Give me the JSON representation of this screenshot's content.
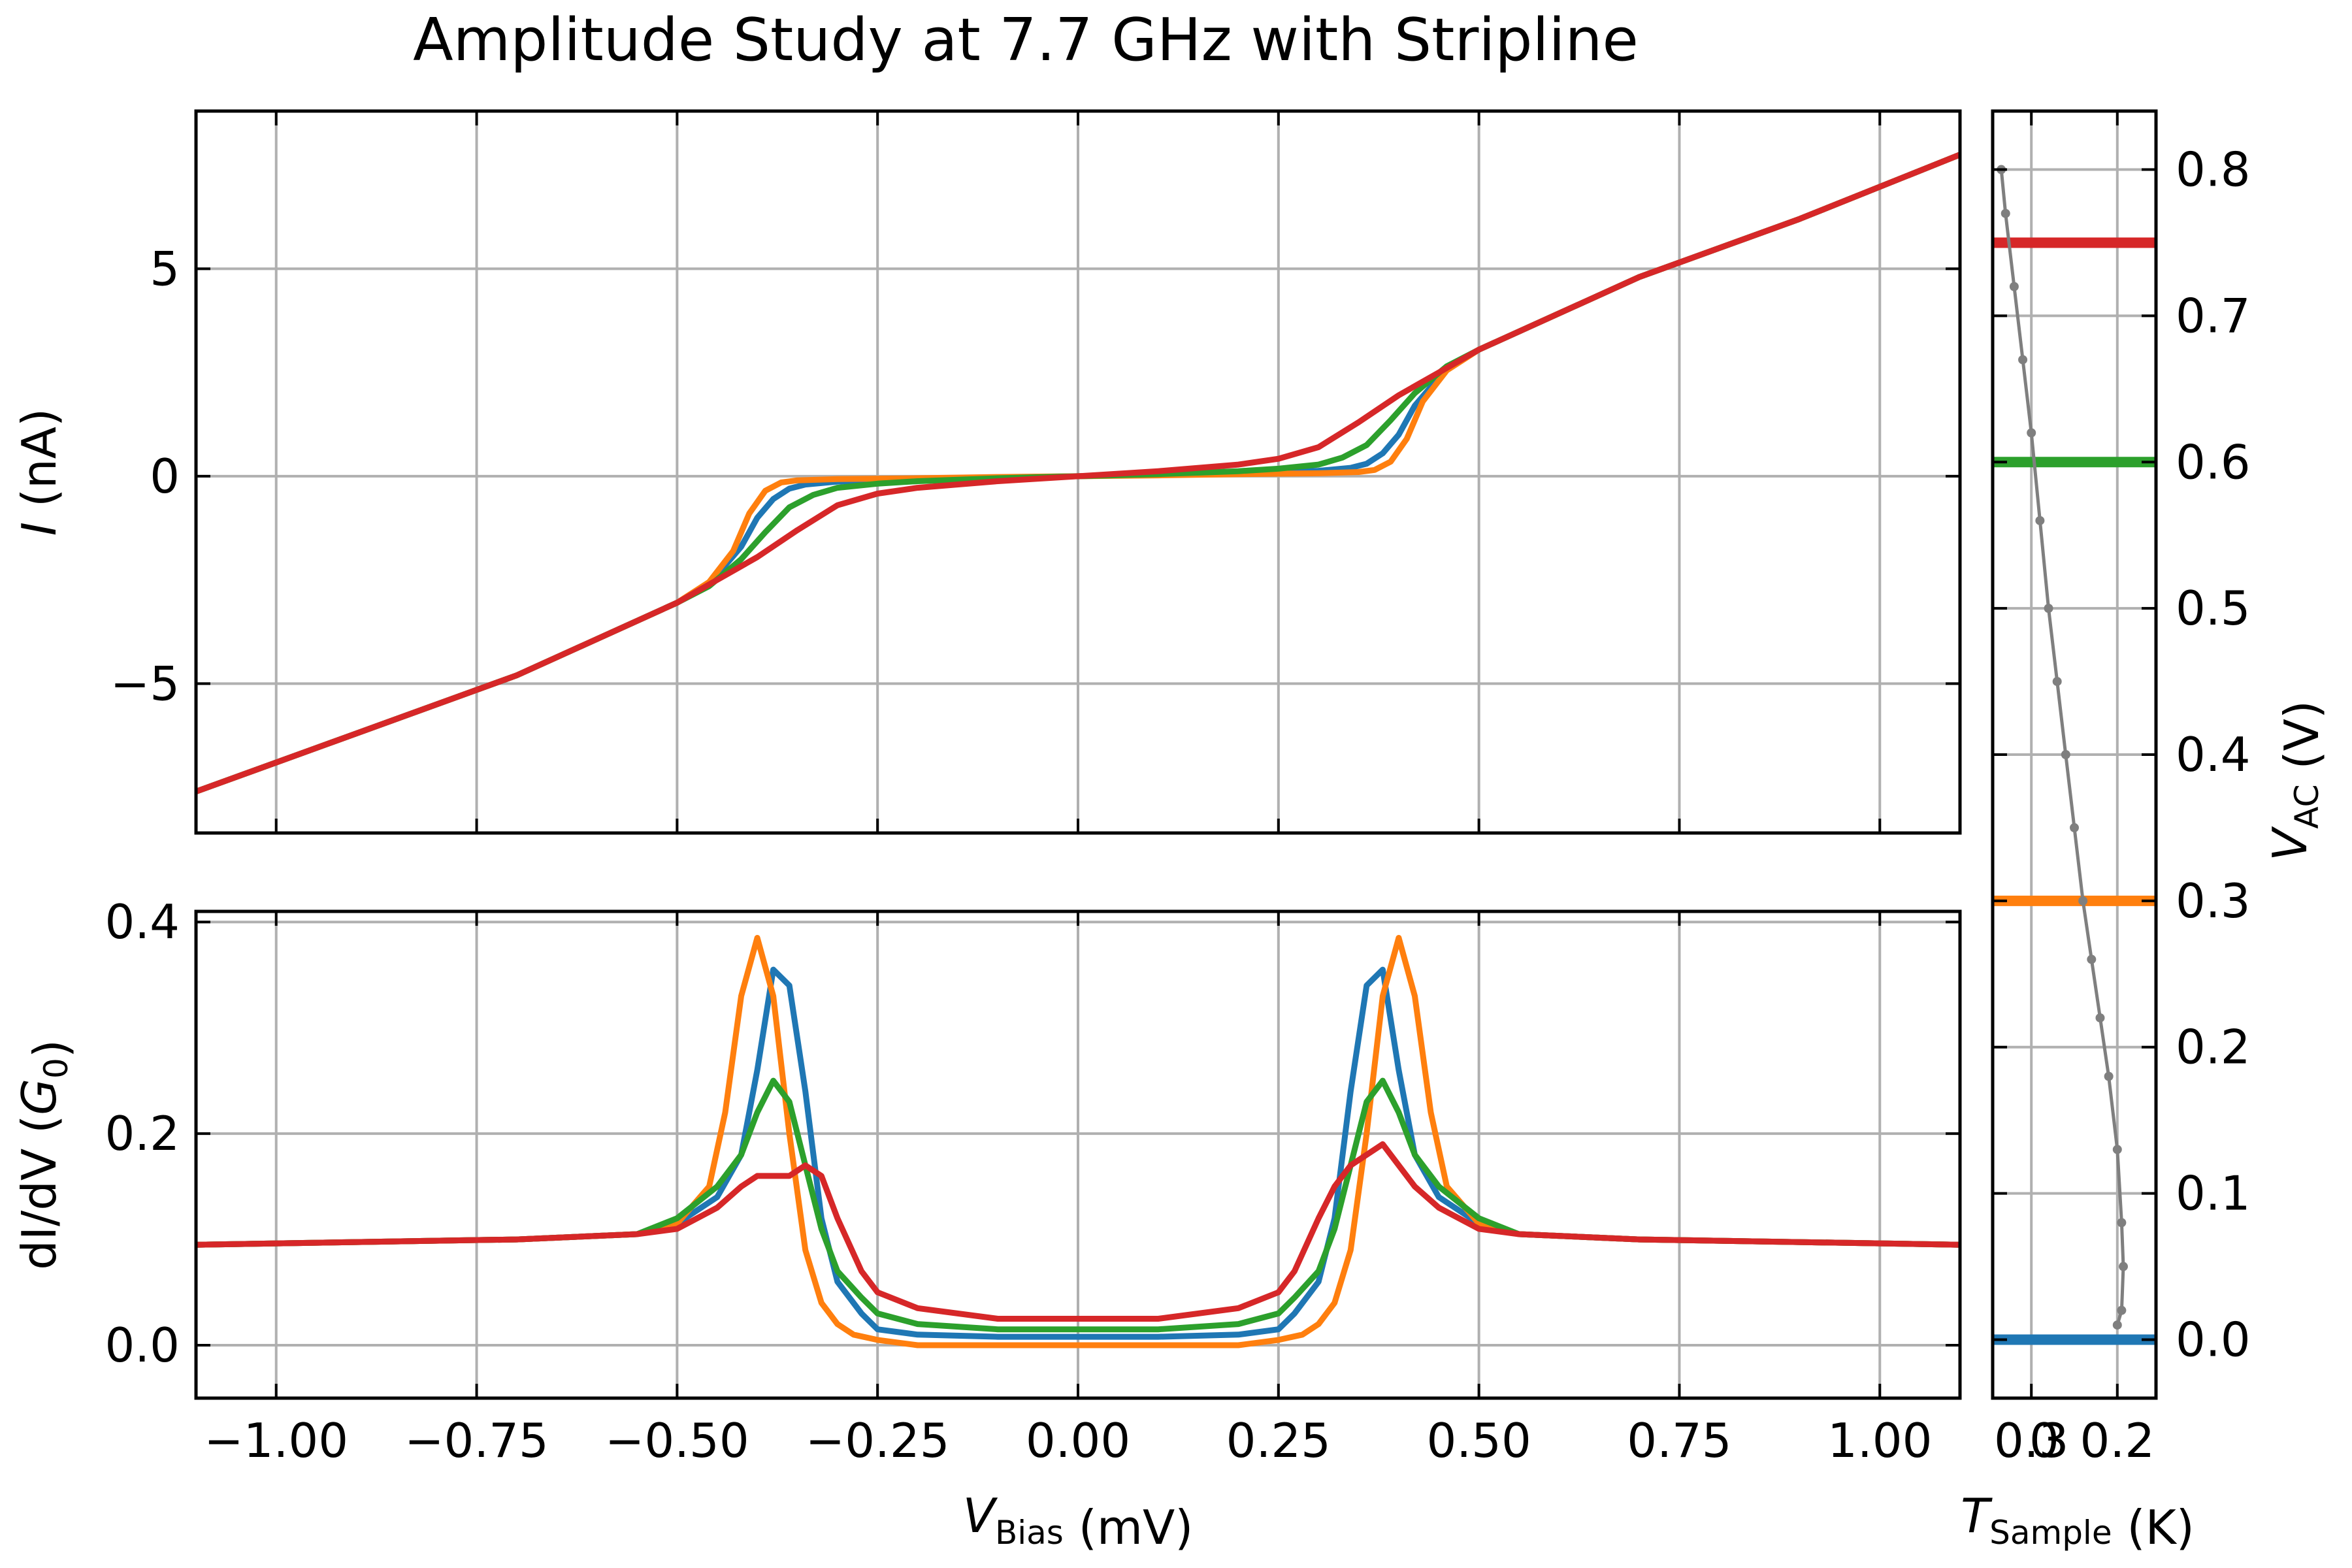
{
  "chart_data": [
    {
      "type": "line",
      "panel": "iv",
      "title": "Amplitude Study at 7.7 GHz with Stripline",
      "ylabel": {
        "var": "I",
        "unit": " (nA)"
      },
      "xlim": [
        -1.1,
        1.1
      ],
      "ylim": [
        -8.6,
        8.8
      ],
      "x_ticks": [
        -1.0,
        -0.75,
        -0.5,
        -0.25,
        0.0,
        0.25,
        0.5,
        0.75,
        1.0
      ],
      "y_ticks": [
        -5,
        0,
        5
      ],
      "y_tick_labels": [
        "−5",
        "0",
        "5"
      ],
      "grid": true,
      "series": [
        {
          "color": "#1f77b4",
          "values": {
            "x": [
              -1.1,
              -0.9,
              -0.7,
              -0.5,
              -0.46,
              -0.42,
              -0.4,
              -0.38,
              -0.36,
              -0.34,
              -0.3,
              -0.2,
              -0.1,
              0,
              0.1,
              0.2,
              0.3,
              0.34,
              0.36,
              0.38,
              0.4,
              0.42,
              0.46,
              0.5,
              0.7,
              0.9,
              1.1
            ],
            "y": [
              -7.6,
              -6.2,
              -4.8,
              -3.05,
              -2.6,
              -1.7,
              -1.0,
              -0.55,
              -0.3,
              -0.2,
              -0.13,
              -0.07,
              -0.03,
              0,
              0.03,
              0.07,
              0.13,
              0.2,
              0.3,
              0.55,
              1.0,
              1.7,
              2.6,
              3.05,
              4.8,
              6.2,
              7.75
            ]
          }
        },
        {
          "color": "#ff7f0e",
          "values": {
            "x": [
              -1.1,
              -0.9,
              -0.7,
              -0.5,
              -0.46,
              -0.43,
              -0.41,
              -0.39,
              -0.37,
              -0.35,
              -0.3,
              -0.2,
              -0.1,
              0,
              0.1,
              0.2,
              0.3,
              0.35,
              0.37,
              0.39,
              0.41,
              0.43,
              0.46,
              0.5,
              0.7,
              0.9,
              1.1
            ],
            "y": [
              -7.6,
              -6.2,
              -4.8,
              -3.05,
              -2.55,
              -1.8,
              -0.9,
              -0.35,
              -0.15,
              -0.1,
              -0.07,
              -0.05,
              -0.02,
              0,
              0.02,
              0.05,
              0.07,
              0.1,
              0.15,
              0.35,
              0.9,
              1.8,
              2.55,
              3.05,
              4.8,
              6.2,
              7.75
            ]
          }
        },
        {
          "color": "#2ca02c",
          "values": {
            "x": [
              -1.1,
              -0.9,
              -0.7,
              -0.5,
              -0.46,
              -0.42,
              -0.39,
              -0.36,
              -0.33,
              -0.3,
              -0.25,
              -0.2,
              -0.1,
              0,
              0.1,
              0.2,
              0.25,
              0.3,
              0.33,
              0.36,
              0.39,
              0.42,
              0.46,
              0.5,
              0.7,
              0.9,
              1.1
            ],
            "y": [
              -7.6,
              -6.2,
              -4.8,
              -3.05,
              -2.65,
              -2.0,
              -1.35,
              -0.75,
              -0.45,
              -0.28,
              -0.18,
              -0.12,
              -0.05,
              0,
              0.05,
              0.12,
              0.18,
              0.28,
              0.45,
              0.75,
              1.35,
              2.0,
              2.65,
              3.05,
              4.8,
              6.2,
              7.75
            ]
          }
        },
        {
          "color": "#d62728",
          "values": {
            "x": [
              -1.1,
              -0.9,
              -0.7,
              -0.5,
              -0.45,
              -0.4,
              -0.35,
              -0.3,
              -0.25,
              -0.2,
              -0.1,
              0,
              0.1,
              0.2,
              0.25,
              0.3,
              0.35,
              0.4,
              0.45,
              0.5,
              0.7,
              0.9,
              1.1
            ],
            "y": [
              -7.6,
              -6.2,
              -4.8,
              -3.05,
              -2.5,
              -1.95,
              -1.3,
              -0.7,
              -0.42,
              -0.28,
              -0.12,
              0,
              0.12,
              0.28,
              0.42,
              0.7,
              1.3,
              1.95,
              2.5,
              3.05,
              4.8,
              6.2,
              7.75
            ]
          }
        }
      ]
    },
    {
      "type": "line",
      "panel": "didv",
      "xlabel": {
        "var": "V",
        "sub": "Bias",
        "unit": " (mV)"
      },
      "ylabel": {
        "pre": "dI/dV ",
        "var": "G",
        "sub": "0"
      },
      "xlim": [
        -1.1,
        1.1
      ],
      "ylim": [
        -0.05,
        0.41
      ],
      "x_ticks": [
        -1.0,
        -0.75,
        -0.5,
        -0.25,
        0.0,
        0.25,
        0.5,
        0.75,
        1.0
      ],
      "x_tick_labels": [
        "−1.00",
        "−0.75",
        "−0.50",
        "−0.25",
        "0.00",
        "0.25",
        "0.50",
        "0.75",
        "1.00"
      ],
      "y_ticks": [
        0.0,
        0.2,
        0.4
      ],
      "y_tick_labels": [
        "0.0",
        "0.2",
        "0.4"
      ],
      "grid": true,
      "series": [
        {
          "color": "#1f77b4",
          "values": {
            "x": [
              -1.1,
              -0.7,
              -0.55,
              -0.5,
              -0.45,
              -0.42,
              -0.4,
              -0.38,
              -0.36,
              -0.34,
              -0.32,
              -0.3,
              -0.27,
              -0.25,
              -0.2,
              -0.1,
              0,
              0.1,
              0.2,
              0.25,
              0.27,
              0.3,
              0.32,
              0.34,
              0.36,
              0.38,
              0.4,
              0.42,
              0.45,
              0.5,
              0.55,
              0.7,
              1.1
            ],
            "y": [
              0.095,
              0.1,
              0.105,
              0.115,
              0.14,
              0.18,
              0.26,
              0.355,
              0.34,
              0.24,
              0.12,
              0.06,
              0.03,
              0.015,
              0.01,
              0.008,
              0.008,
              0.008,
              0.01,
              0.015,
              0.03,
              0.06,
              0.12,
              0.24,
              0.34,
              0.355,
              0.26,
              0.18,
              0.14,
              0.115,
              0.105,
              0.1,
              0.095
            ]
          }
        },
        {
          "color": "#ff7f0e",
          "values": {
            "x": [
              -1.1,
              -0.7,
              -0.55,
              -0.5,
              -0.46,
              -0.44,
              -0.42,
              -0.4,
              -0.38,
              -0.36,
              -0.34,
              -0.32,
              -0.3,
              -0.28,
              -0.25,
              -0.2,
              -0.1,
              0,
              0.1,
              0.2,
              0.25,
              0.28,
              0.3,
              0.32,
              0.34,
              0.36,
              0.38,
              0.4,
              0.42,
              0.44,
              0.46,
              0.5,
              0.55,
              0.7,
              1.1
            ],
            "y": [
              0.095,
              0.1,
              0.105,
              0.115,
              0.15,
              0.22,
              0.33,
              0.385,
              0.33,
              0.2,
              0.09,
              0.04,
              0.02,
              0.01,
              0.005,
              0.0,
              0.0,
              0.0,
              0.0,
              0.0,
              0.005,
              0.01,
              0.02,
              0.04,
              0.09,
              0.2,
              0.33,
              0.385,
              0.33,
              0.22,
              0.15,
              0.115,
              0.105,
              0.1,
              0.095
            ]
          }
        },
        {
          "color": "#2ca02c",
          "values": {
            "x": [
              -1.1,
              -0.7,
              -0.55,
              -0.5,
              -0.45,
              -0.42,
              -0.4,
              -0.38,
              -0.36,
              -0.34,
              -0.32,
              -0.3,
              -0.27,
              -0.25,
              -0.2,
              -0.1,
              0,
              0.1,
              0.2,
              0.25,
              0.27,
              0.3,
              0.32,
              0.34,
              0.36,
              0.38,
              0.4,
              0.42,
              0.45,
              0.5,
              0.55,
              0.7,
              1.1
            ],
            "y": [
              0.095,
              0.1,
              0.105,
              0.12,
              0.15,
              0.18,
              0.22,
              0.25,
              0.23,
              0.17,
              0.11,
              0.07,
              0.045,
              0.03,
              0.02,
              0.015,
              0.015,
              0.015,
              0.02,
              0.03,
              0.045,
              0.07,
              0.11,
              0.17,
              0.23,
              0.25,
              0.22,
              0.18,
              0.15,
              0.12,
              0.105,
              0.1,
              0.095
            ]
          }
        },
        {
          "color": "#d62728",
          "values": {
            "x": [
              -1.1,
              -0.7,
              -0.55,
              -0.5,
              -0.45,
              -0.42,
              -0.4,
              -0.38,
              -0.36,
              -0.34,
              -0.32,
              -0.3,
              -0.27,
              -0.25,
              -0.2,
              -0.1,
              0,
              0.1,
              0.2,
              0.25,
              0.27,
              0.3,
              0.32,
              0.34,
              0.36,
              0.38,
              0.4,
              0.42,
              0.45,
              0.5,
              0.55,
              0.7,
              1.1
            ],
            "y": [
              0.095,
              0.1,
              0.105,
              0.11,
              0.13,
              0.15,
              0.16,
              0.16,
              0.16,
              0.17,
              0.16,
              0.12,
              0.07,
              0.05,
              0.035,
              0.025,
              0.025,
              0.025,
              0.035,
              0.05,
              0.07,
              0.12,
              0.15,
              0.17,
              0.18,
              0.19,
              0.17,
              0.15,
              0.13,
              0.11,
              0.105,
              0.1,
              0.095
            ]
          }
        }
      ]
    },
    {
      "type": "line",
      "panel": "temp",
      "xlabel": {
        "var": "T",
        "sub": "Sample",
        "unit": " (K)"
      },
      "ylabel": {
        "var": "V",
        "sub": "AC",
        "unit": " (V)"
      },
      "xlim": [
        0.345,
        0.155
      ],
      "ylim": [
        -0.04,
        0.84
      ],
      "x_ticks": [
        0.3,
        0.2
      ],
      "x_tick_labels": [
        "0.3",
        "0.2"
      ],
      "extra_x_tick_label": "0",
      "y_ticks": [
        0.0,
        0.1,
        0.2,
        0.3,
        0.4,
        0.5,
        0.6,
        0.7,
        0.8
      ],
      "y_tick_labels": [
        "0.0",
        "0.1",
        "0.2",
        "0.3",
        "0.4",
        "0.5",
        "0.6",
        "0.7",
        "0.8"
      ],
      "grid": true,
      "series": [
        {
          "color": "#7f7f7f",
          "marker": "dot",
          "values": {
            "x": [
              0.335,
              0.33,
              0.32,
              0.31,
              0.3,
              0.29,
              0.28,
              0.27,
              0.26,
              0.25,
              0.24,
              0.23,
              0.22,
              0.21,
              0.2,
              0.195,
              0.193,
              0.195,
              0.2
            ],
            "y": [
              0.8,
              0.77,
              0.72,
              0.67,
              0.62,
              0.56,
              0.5,
              0.45,
              0.4,
              0.35,
              0.3,
              0.26,
              0.22,
              0.18,
              0.13,
              0.08,
              0.05,
              0.02,
              0.01
            ]
          }
        }
      ],
      "hlines": [
        {
          "y": 0.0,
          "color": "#1f77b4"
        },
        {
          "y": 0.3,
          "color": "#ff7f0e"
        },
        {
          "y": 0.6,
          "color": "#2ca02c"
        },
        {
          "y": 0.75,
          "color": "#d62728"
        }
      ]
    }
  ]
}
